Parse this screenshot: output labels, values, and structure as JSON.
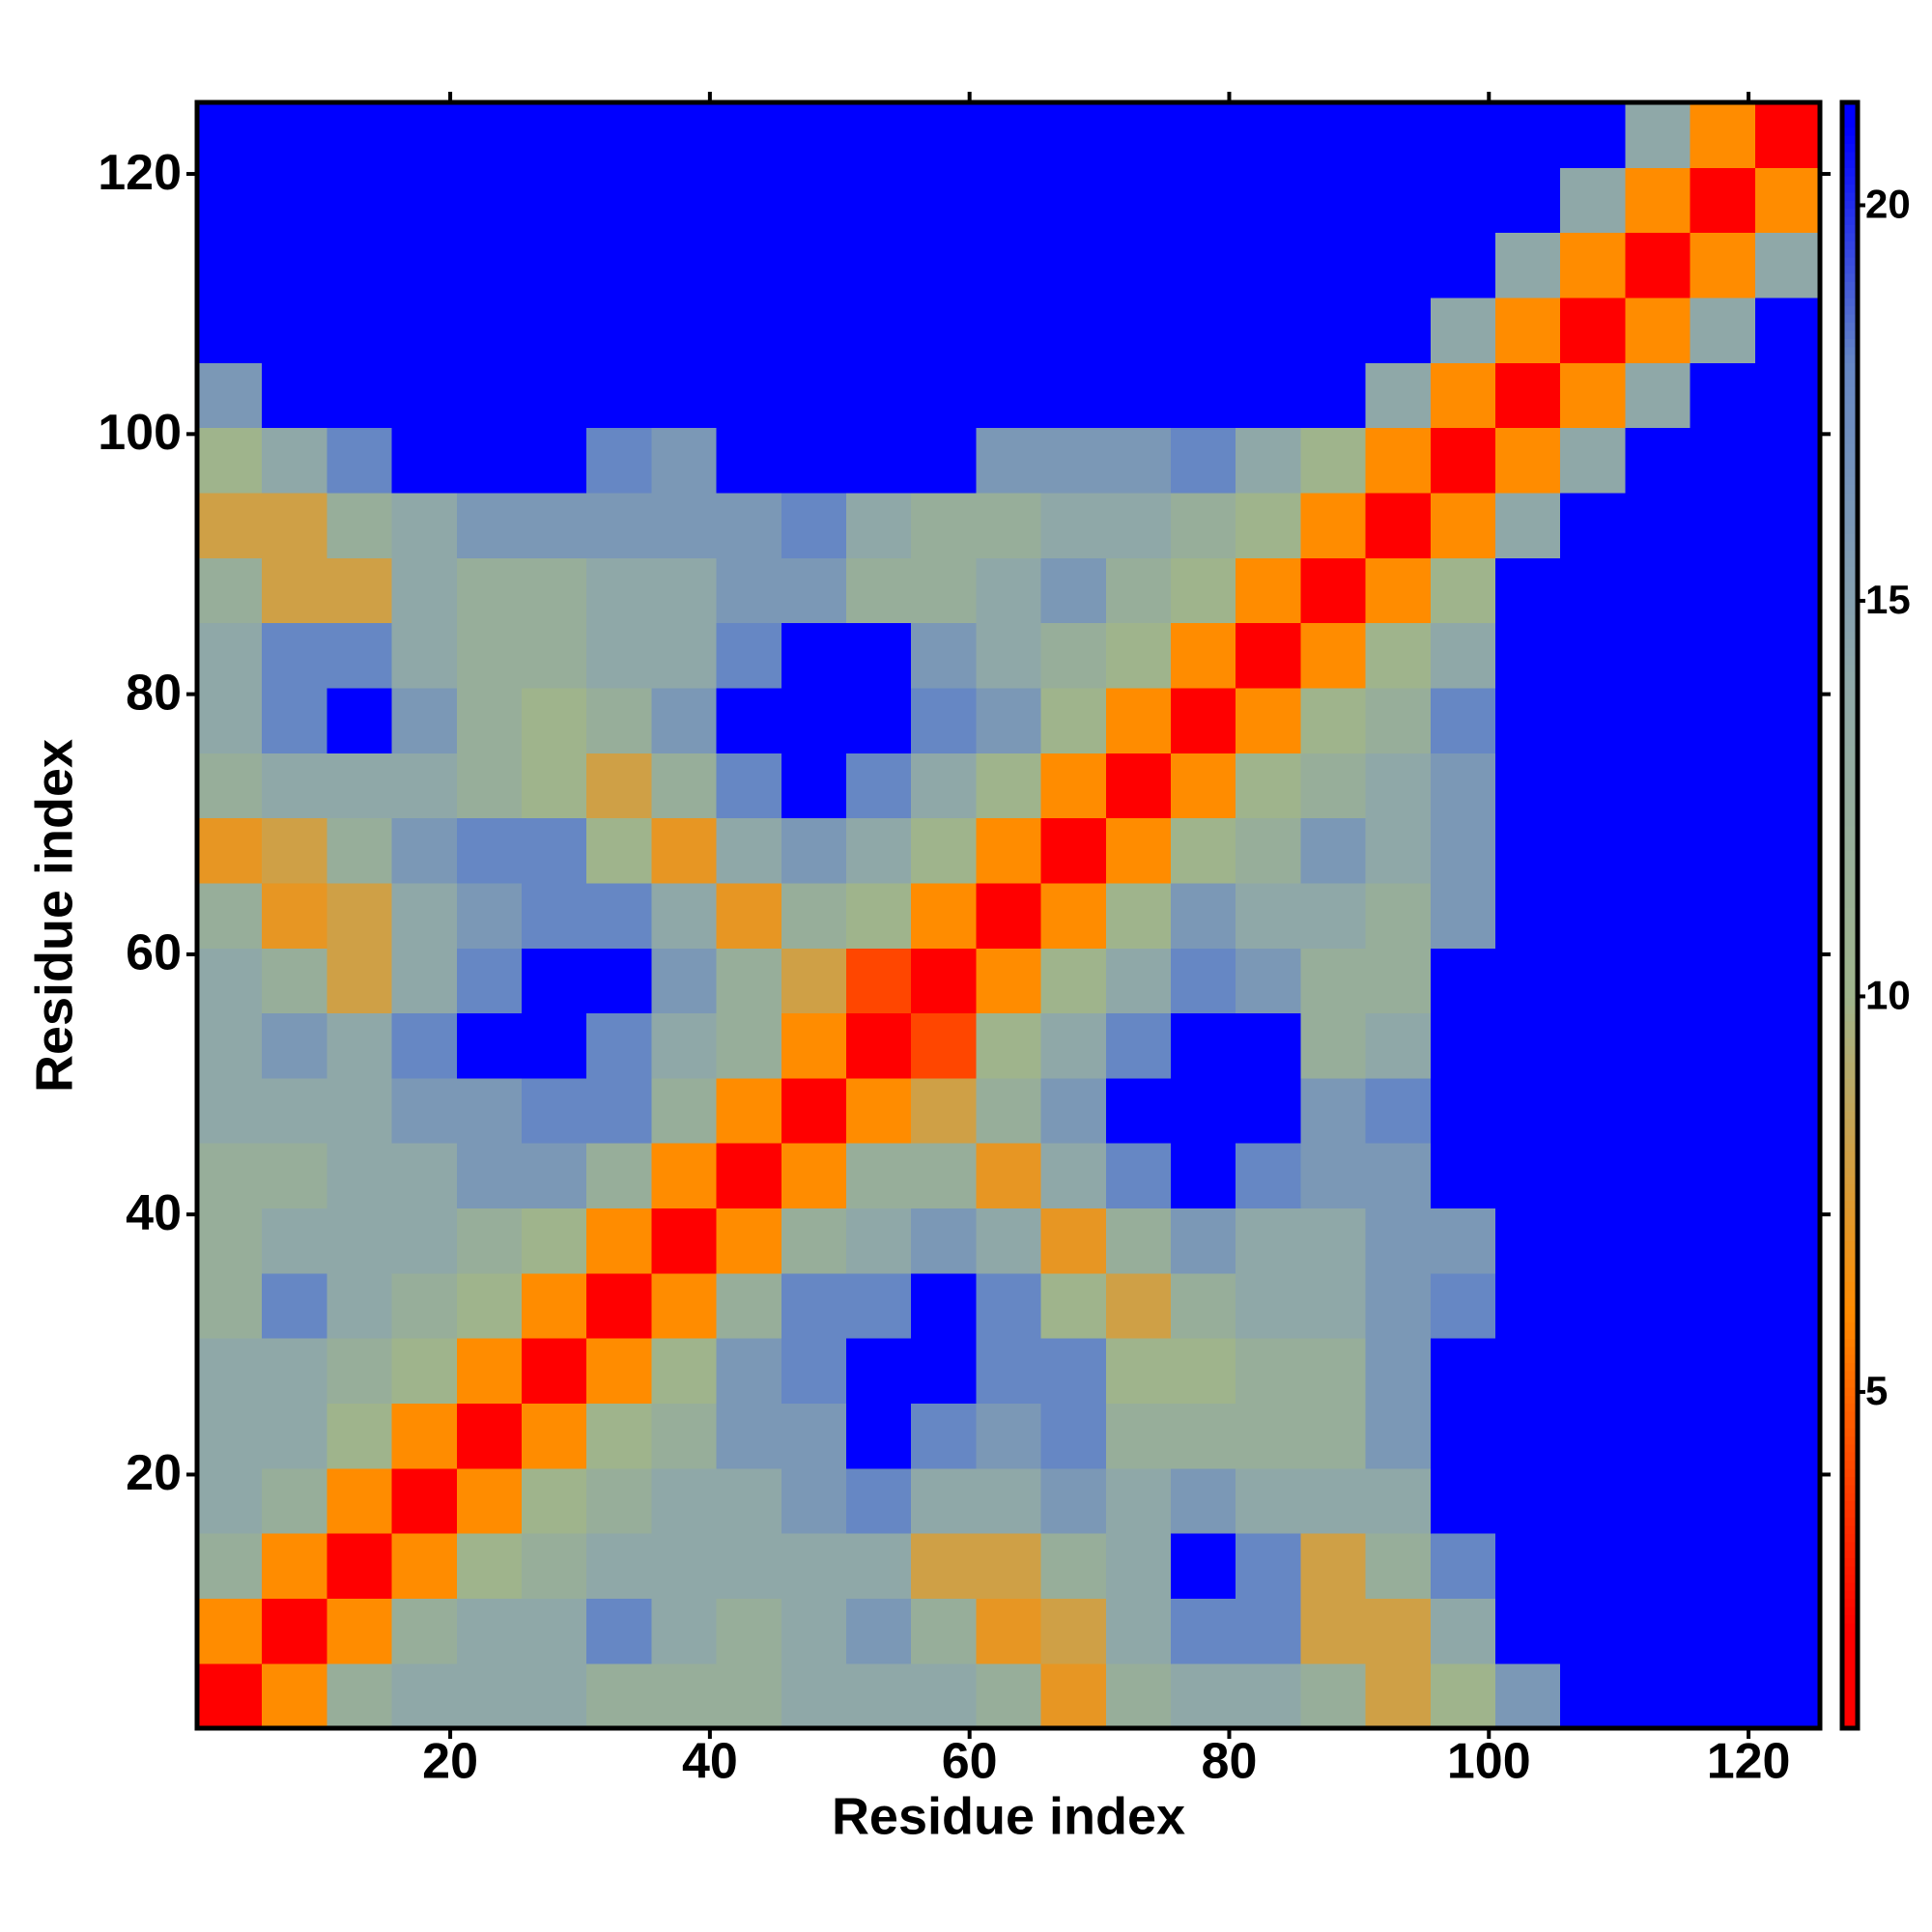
{
  "chart_data": {
    "type": "heatmap",
    "xlabel": "Residue index",
    "ylabel": "Residue index",
    "x": [
      3,
      8,
      13,
      18,
      23,
      28,
      33,
      38,
      43,
      48,
      53,
      58,
      63,
      68,
      73,
      78,
      83,
      88,
      93,
      98,
      103,
      108,
      113,
      118,
      123
    ],
    "y": [
      3,
      8,
      13,
      18,
      23,
      28,
      33,
      38,
      43,
      48,
      53,
      58,
      63,
      68,
      73,
      78,
      83,
      88,
      93,
      98,
      103,
      108,
      113,
      118,
      123
    ],
    "xlim": [
      0.5,
      125.5
    ],
    "ylim": [
      0.5,
      125.5
    ],
    "xticks": [
      20,
      40,
      60,
      80,
      100,
      120
    ],
    "yticks": [
      20,
      40,
      60,
      80,
      100,
      120
    ],
    "zlim": [
      0.75,
      21.3
    ],
    "zticks": [
      5,
      10,
      15,
      20
    ],
    "colorscale": [
      [
        2,
        "#ff0000"
      ],
      [
        6,
        "#ff8c00"
      ],
      [
        10,
        "#9fb48c"
      ],
      [
        14,
        "#8fa8a8"
      ],
      [
        18,
        "#6687c4"
      ],
      [
        21,
        "#0000ff"
      ]
    ],
    "z": [
      [
        2,
        6,
        12,
        14,
        14,
        14,
        12,
        12,
        12,
        14,
        14,
        14,
        12,
        7,
        12,
        14,
        14,
        12,
        8,
        10,
        16,
        21,
        21,
        21,
        21
      ],
      [
        6,
        2,
        6,
        12,
        14,
        14,
        18,
        14,
        12,
        14,
        16,
        12,
        7,
        8,
        14,
        18,
        18,
        8,
        8,
        14,
        21,
        21,
        21,
        21,
        21
      ],
      [
        12,
        6,
        2,
        6,
        10,
        12,
        14,
        14,
        14,
        14,
        14,
        8,
        8,
        12,
        14,
        21,
        18,
        8,
        12,
        18,
        21,
        21,
        21,
        21,
        21
      ],
      [
        14,
        12,
        6,
        2,
        6,
        10,
        12,
        14,
        14,
        16,
        18,
        14,
        14,
        16,
        14,
        16,
        14,
        14,
        14,
        21,
        21,
        21,
        21,
        21,
        21
      ],
      [
        14,
        14,
        10,
        6,
        2,
        6,
        10,
        12,
        16,
        16,
        21,
        18,
        16,
        18,
        12,
        12,
        12,
        12,
        16,
        21,
        21,
        21,
        21,
        21,
        21
      ],
      [
        14,
        14,
        12,
        10,
        6,
        2,
        6,
        10,
        16,
        18,
        21,
        21,
        18,
        18,
        10,
        10,
        12,
        12,
        16,
        21,
        21,
        21,
        21,
        21,
        21
      ],
      [
        12,
        18,
        14,
        12,
        10,
        6,
        2,
        6,
        12,
        18,
        18,
        21,
        18,
        10,
        8,
        12,
        14,
        14,
        16,
        18,
        21,
        21,
        21,
        21,
        21
      ],
      [
        12,
        14,
        14,
        14,
        12,
        10,
        6,
        2,
        6,
        12,
        14,
        16,
        14,
        7,
        12,
        16,
        14,
        14,
        16,
        16,
        21,
        21,
        21,
        21,
        21
      ],
      [
        12,
        12,
        14,
        14,
        16,
        16,
        12,
        6,
        2,
        6,
        12,
        12,
        7,
        14,
        18,
        21,
        18,
        16,
        16,
        21,
        21,
        21,
        21,
        21,
        21
      ],
      [
        14,
        14,
        14,
        16,
        16,
        18,
        18,
        12,
        6,
        2,
        6,
        8,
        12,
        16,
        21,
        21,
        21,
        16,
        18,
        21,
        21,
        21,
        21,
        21,
        21
      ],
      [
        14,
        16,
        14,
        18,
        21,
        21,
        18,
        14,
        12,
        6,
        2,
        4,
        10,
        14,
        18,
        21,
        21,
        12,
        14,
        21,
        21,
        21,
        21,
        21,
        21
      ],
      [
        14,
        12,
        8,
        14,
        18,
        21,
        21,
        16,
        12,
        8,
        4,
        2,
        6,
        10,
        14,
        18,
        16,
        12,
        12,
        21,
        21,
        21,
        21,
        21,
        21
      ],
      [
        12,
        7,
        8,
        14,
        16,
        18,
        18,
        14,
        7,
        12,
        10,
        6,
        2,
        6,
        10,
        16,
        14,
        14,
        12,
        16,
        21,
        21,
        21,
        21,
        21
      ],
      [
        7,
        8,
        12,
        16,
        18,
        18,
        10,
        7,
        14,
        16,
        14,
        10,
        6,
        2,
        6,
        10,
        12,
        16,
        14,
        16,
        21,
        21,
        21,
        21,
        21
      ],
      [
        12,
        14,
        14,
        14,
        12,
        10,
        8,
        12,
        18,
        21,
        18,
        14,
        10,
        6,
        2,
        6,
        10,
        12,
        14,
        16,
        21,
        21,
        21,
        21,
        21
      ],
      [
        14,
        18,
        21,
        16,
        12,
        10,
        12,
        16,
        21,
        21,
        21,
        18,
        16,
        10,
        6,
        2,
        6,
        10,
        12,
        18,
        21,
        21,
        21,
        21,
        21
      ],
      [
        14,
        18,
        18,
        14,
        12,
        12,
        14,
        14,
        18,
        21,
        21,
        16,
        14,
        12,
        10,
        6,
        2,
        6,
        10,
        14,
        21,
        21,
        21,
        21,
        21
      ],
      [
        12,
        8,
        8,
        14,
        12,
        12,
        14,
        14,
        16,
        16,
        12,
        12,
        14,
        16,
        12,
        10,
        6,
        2,
        6,
        10,
        21,
        21,
        21,
        21,
        21
      ],
      [
        8,
        8,
        12,
        14,
        16,
        16,
        16,
        16,
        16,
        18,
        14,
        12,
        12,
        14,
        14,
        12,
        10,
        6,
        2,
        6,
        14,
        21,
        21,
        21,
        21
      ],
      [
        10,
        14,
        18,
        21,
        21,
        21,
        18,
        16,
        21,
        21,
        21,
        21,
        16,
        16,
        16,
        18,
        14,
        10,
        6,
        2,
        6,
        14,
        21,
        21,
        21
      ],
      [
        16,
        21,
        21,
        21,
        21,
        21,
        21,
        21,
        21,
        21,
        21,
        21,
        21,
        21,
        21,
        21,
        21,
        21,
        14,
        6,
        2,
        6,
        14,
        21,
        21
      ],
      [
        21,
        21,
        21,
        21,
        21,
        21,
        21,
        21,
        21,
        21,
        21,
        21,
        21,
        21,
        21,
        21,
        21,
        21,
        21,
        14,
        6,
        2,
        6,
        14,
        21
      ],
      [
        21,
        21,
        21,
        21,
        21,
        21,
        21,
        21,
        21,
        21,
        21,
        21,
        21,
        21,
        21,
        21,
        21,
        21,
        21,
        21,
        14,
        6,
        2,
        6,
        14
      ],
      [
        21,
        21,
        21,
        21,
        21,
        21,
        21,
        21,
        21,
        21,
        21,
        21,
        21,
        21,
        21,
        21,
        21,
        21,
        21,
        21,
        21,
        14,
        6,
        2,
        6
      ],
      [
        21,
        21,
        21,
        21,
        21,
        21,
        21,
        21,
        21,
        21,
        21,
        21,
        21,
        21,
        21,
        21,
        21,
        21,
        21,
        21,
        21,
        21,
        14,
        6,
        2
      ]
    ]
  }
}
